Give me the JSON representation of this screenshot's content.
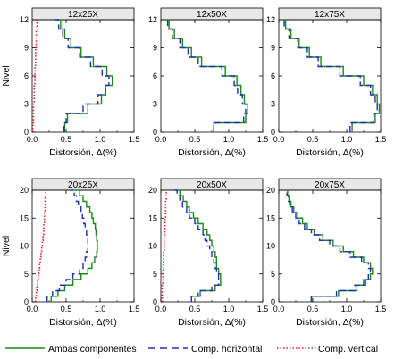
{
  "ylabel": "Nivel",
  "xlabel": "Distorsión, Δ(%)",
  "legend": {
    "position": "bottom",
    "items": [
      {
        "label": "Ambas componentes",
        "color": "#1a8a1a",
        "style": "solid"
      },
      {
        "label": "Comp. horizontal",
        "color": "#1f2fbf",
        "style": "dashed"
      },
      {
        "label": "Comp. vertical",
        "color": "#e0202a",
        "style": "dotted"
      }
    ]
  },
  "colors": {
    "ambas": "#1a8a1a",
    "horizontal": "#1f2fbf",
    "vertical": "#e0202a",
    "title_bar": "#e8e8e8"
  },
  "chart_data": [
    {
      "type": "line",
      "title": "12x25X",
      "xlim": [
        0,
        1.5
      ],
      "ylim": [
        0,
        12
      ],
      "xticks": [
        "0.0",
        "0.5",
        "1.0",
        "1.5"
      ],
      "yticks": [
        "0",
        "3",
        "6",
        "9",
        "12"
      ],
      "series": [
        {
          "name": "Ambas componentes",
          "x": [
            0.48,
            0.52,
            0.82,
            1.02,
            1.08,
            1.18,
            1.1,
            0.9,
            0.72,
            0.57,
            0.48,
            0.42,
            0.35
          ],
          "y": [
            0,
            1,
            2,
            3,
            4,
            5,
            6,
            7,
            8,
            9,
            10,
            11,
            12
          ]
        },
        {
          "name": "Comp. horizontal",
          "x": [
            0.47,
            0.5,
            0.75,
            0.97,
            1.08,
            1.13,
            1.03,
            0.86,
            0.7,
            0.53,
            0.45,
            0.39,
            0.32
          ],
          "y": [
            0,
            1,
            2,
            3,
            4,
            5,
            6,
            7,
            8,
            9,
            10,
            11,
            12
          ]
        },
        {
          "name": "Comp. vertical",
          "x": [
            0.01,
            0.02,
            0.02,
            0.03,
            0.03,
            0.04,
            0.04,
            0.05,
            0.05,
            0.06,
            0.06,
            0.07,
            0.07
          ],
          "y": [
            0,
            1,
            2,
            3,
            4,
            5,
            6,
            7,
            8,
            9,
            10,
            11,
            12
          ]
        }
      ]
    },
    {
      "type": "line",
      "title": "12x50X",
      "xlim": [
        0,
        1.5
      ],
      "ylim": [
        0,
        12
      ],
      "xticks": [
        "0.0",
        "0.5",
        "1.0",
        "1.5"
      ],
      "yticks": [
        "0",
        "3",
        "6",
        "9",
        "12"
      ],
      "series": [
        {
          "name": "Ambas componentes",
          "x": [
            0.78,
            1.25,
            1.28,
            1.23,
            1.18,
            1.12,
            0.95,
            0.6,
            0.45,
            0.32,
            0.2,
            0.12,
            0.08
          ],
          "y": [
            0,
            1,
            2,
            3,
            4,
            5,
            6,
            7,
            8,
            9,
            10,
            11,
            12
          ]
        },
        {
          "name": "Comp. horizontal",
          "x": [
            0.78,
            1.22,
            1.25,
            1.2,
            1.13,
            1.08,
            0.9,
            0.55,
            0.4,
            0.28,
            0.17,
            0.1,
            0.06
          ],
          "y": [
            0,
            1,
            2,
            3,
            4,
            5,
            6,
            7,
            8,
            9,
            10,
            11,
            12
          ]
        }
      ]
    },
    {
      "type": "line",
      "title": "12x75X",
      "xlim": [
        0,
        1.5
      ],
      "ylim": [
        0,
        12
      ],
      "xticks": [
        "0.0",
        "0.5",
        "1.0",
        "1.5"
      ],
      "yticks": [
        "0",
        "3",
        "6",
        "9",
        "12"
      ],
      "series": [
        {
          "name": "Ambas componentes",
          "x": [
            1.08,
            1.42,
            1.48,
            1.45,
            1.38,
            1.25,
            0.95,
            0.62,
            0.45,
            0.3,
            0.18,
            0.1,
            0.06
          ],
          "y": [
            0,
            1,
            2,
            3,
            4,
            5,
            6,
            7,
            8,
            9,
            10,
            11,
            12
          ]
        },
        {
          "name": "Comp. horizontal",
          "x": [
            1.05,
            1.4,
            1.45,
            1.42,
            1.35,
            1.2,
            0.9,
            0.58,
            0.42,
            0.28,
            0.15,
            0.08,
            0.05
          ],
          "y": [
            0,
            1,
            2,
            3,
            4,
            5,
            6,
            7,
            8,
            9,
            10,
            11,
            12
          ]
        }
      ]
    },
    {
      "type": "line",
      "title": "20x25X",
      "xlim": [
        0,
        1.5
      ],
      "ylim": [
        0,
        20
      ],
      "xticks": [
        "0.0",
        "0.5",
        "1.0",
        "1.5"
      ],
      "yticks": [
        "0",
        "5",
        "10",
        "15",
        "20"
      ],
      "series": [
        {
          "name": "Ambas componentes",
          "x": [
            0.28,
            0.38,
            0.48,
            0.6,
            0.72,
            0.82,
            0.88,
            0.92,
            0.95,
            0.96,
            0.96,
            0.95,
            0.94,
            0.93,
            0.9,
            0.88,
            0.85,
            0.8,
            0.75,
            0.7,
            0.62
          ],
          "y": [
            0,
            1,
            2,
            3,
            4,
            5,
            6,
            7,
            8,
            9,
            10,
            11,
            12,
            13,
            14,
            15,
            16,
            17,
            18,
            19,
            20
          ]
        },
        {
          "name": "Comp. horizontal",
          "x": [
            0.22,
            0.3,
            0.4,
            0.5,
            0.6,
            0.7,
            0.75,
            0.78,
            0.8,
            0.82,
            0.82,
            0.82,
            0.8,
            0.78,
            0.76,
            0.74,
            0.72,
            0.68,
            0.65,
            0.62,
            0.57
          ],
          "y": [
            0,
            1,
            2,
            3,
            4,
            5,
            6,
            7,
            8,
            9,
            10,
            11,
            12,
            13,
            14,
            15,
            16,
            17,
            18,
            19,
            20
          ]
        },
        {
          "name": "Comp. vertical",
          "x": [
            0.05,
            0.06,
            0.07,
            0.08,
            0.09,
            0.1,
            0.11,
            0.12,
            0.13,
            0.14,
            0.15,
            0.16,
            0.17,
            0.17,
            0.18,
            0.18,
            0.19,
            0.19,
            0.19,
            0.2,
            0.2
          ],
          "y": [
            0,
            1,
            2,
            3,
            4,
            5,
            6,
            7,
            8,
            9,
            10,
            11,
            12,
            13,
            14,
            15,
            16,
            17,
            18,
            19,
            20
          ]
        }
      ]
    },
    {
      "type": "line",
      "title": "20x50X",
      "xlim": [
        0,
        1.5
      ],
      "ylim": [
        0,
        20
      ],
      "xticks": [
        "0.0",
        "0.5",
        "1.0",
        "1.5"
      ],
      "yticks": [
        "0",
        "5",
        "10",
        "15",
        "20"
      ],
      "series": [
        {
          "name": "Ambas componentes",
          "x": [
            0.45,
            0.58,
            0.8,
            0.88,
            0.88,
            0.85,
            0.82,
            0.82,
            0.8,
            0.78,
            0.75,
            0.72,
            0.68,
            0.62,
            0.55,
            0.48,
            0.42,
            0.38,
            0.33,
            0.28,
            0.22
          ],
          "y": [
            0,
            1,
            2,
            3,
            4,
            5,
            6,
            7,
            8,
            9,
            10,
            11,
            12,
            13,
            14,
            15,
            16,
            17,
            18,
            19,
            20
          ]
        },
        {
          "name": "Comp. horizontal",
          "x": [
            0.45,
            0.55,
            0.75,
            0.85,
            0.85,
            0.82,
            0.8,
            0.78,
            0.75,
            0.72,
            0.68,
            0.65,
            0.62,
            0.55,
            0.5,
            0.42,
            0.38,
            0.32,
            0.28,
            0.24,
            0.2
          ],
          "y": [
            0,
            1,
            2,
            3,
            4,
            5,
            6,
            7,
            8,
            9,
            10,
            11,
            12,
            13,
            14,
            15,
            16,
            17,
            18,
            19,
            20
          ]
        },
        {
          "name": "Comp. vertical",
          "x": [
            0.02,
            0.02,
            0.02,
            0.03,
            0.03,
            0.03,
            0.04,
            0.04,
            0.04,
            0.05,
            0.05,
            0.05,
            0.06,
            0.06,
            0.06,
            0.07,
            0.07,
            0.07,
            0.08,
            0.08,
            0.08
          ],
          "y": [
            0,
            1,
            2,
            3,
            4,
            5,
            6,
            7,
            8,
            9,
            10,
            11,
            12,
            13,
            14,
            15,
            16,
            17,
            18,
            19,
            20
          ]
        }
      ]
    },
    {
      "type": "line",
      "title": "20x75X",
      "xlim": [
        0,
        1.5
      ],
      "ylim": [
        0,
        20
      ],
      "xticks": [
        "0.0",
        "0.5",
        "1.0",
        "1.5"
      ],
      "yticks": [
        "0",
        "5",
        "10",
        "15",
        "20"
      ],
      "series": [
        {
          "name": "Ambas componentes",
          "x": [
            0.48,
            0.88,
            1.15,
            1.28,
            1.35,
            1.38,
            1.35,
            1.25,
            1.1,
            0.95,
            0.8,
            0.65,
            0.52,
            0.42,
            0.35,
            0.28,
            0.22,
            0.18,
            0.15,
            0.13,
            0.12
          ],
          "y": [
            0,
            1,
            2,
            3,
            4,
            5,
            6,
            7,
            8,
            9,
            10,
            11,
            12,
            13,
            14,
            15,
            16,
            17,
            18,
            19,
            20
          ]
        },
        {
          "name": "Comp. horizontal",
          "x": [
            0.48,
            0.85,
            1.12,
            1.25,
            1.32,
            1.35,
            1.32,
            1.22,
            1.05,
            0.9,
            0.75,
            0.6,
            0.48,
            0.38,
            0.3,
            0.25,
            0.2,
            0.16,
            0.14,
            0.12,
            0.1
          ],
          "y": [
            0,
            1,
            2,
            3,
            4,
            5,
            6,
            7,
            8,
            9,
            10,
            11,
            12,
            13,
            14,
            15,
            16,
            17,
            18,
            19,
            20
          ]
        }
      ]
    }
  ]
}
